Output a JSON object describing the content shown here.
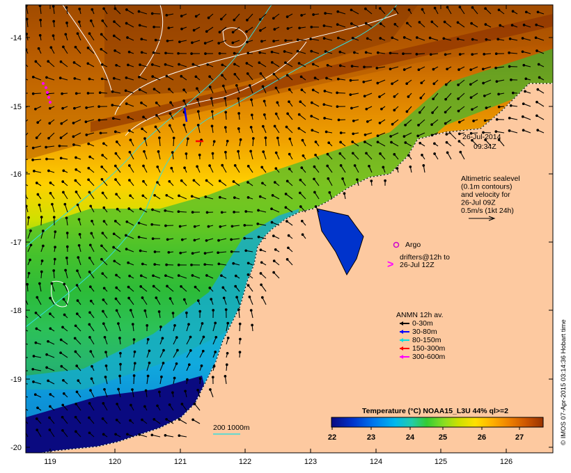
{
  "map": {
    "lon_ticks": [
      "119",
      "120",
      "121",
      "122",
      "123",
      "124",
      "125",
      "126"
    ],
    "lat_ticks": [
      "-14",
      "-15",
      "-16",
      "-17",
      "-18",
      "-19",
      "-20"
    ],
    "timestamp": {
      "date": "26-Jul-2014",
      "time": "09:34Z"
    },
    "altimetry_lines": [
      "Altimetric sealevel",
      "(0.1m contours)",
      "and velocity for",
      "26-Jul 09Z",
      "0.5m/s (1kt 24h)"
    ],
    "argo_label": "Argo",
    "drifters_lines": [
      "drifters@12h to",
      "26-Jul 12Z"
    ],
    "anmn": {
      "title": "ANMN 12h av.",
      "items": [
        {
          "label": "0-30m",
          "color": "#000000"
        },
        {
          "label": "30-80m",
          "color": "#0000ff"
        },
        {
          "label": "80-150m",
          "color": "#00e0e0"
        },
        {
          "label": "150-300m",
          "color": "#ff0000"
        },
        {
          "label": "300-600m",
          "color": "#ff00ff"
        }
      ]
    },
    "isobath_label": "200  1000m",
    "colorbar": {
      "title": "Temperature (°C) NOAA15_L3U 44% ql>=2",
      "ticks": [
        "22",
        "23",
        "24",
        "25",
        "26",
        "27"
      ],
      "colors": [
        "#0a0a80",
        "#0033cc",
        "#0077ee",
        "#00b8ee",
        "#22cca8",
        "#33cc33",
        "#88dd22",
        "#cce000",
        "#ffe000",
        "#ffb000",
        "#ee8000",
        "#cc5500",
        "#993300"
      ]
    },
    "credit": "© IMOS 07-Apr-2015 03:14:36 Hobart time"
  }
}
